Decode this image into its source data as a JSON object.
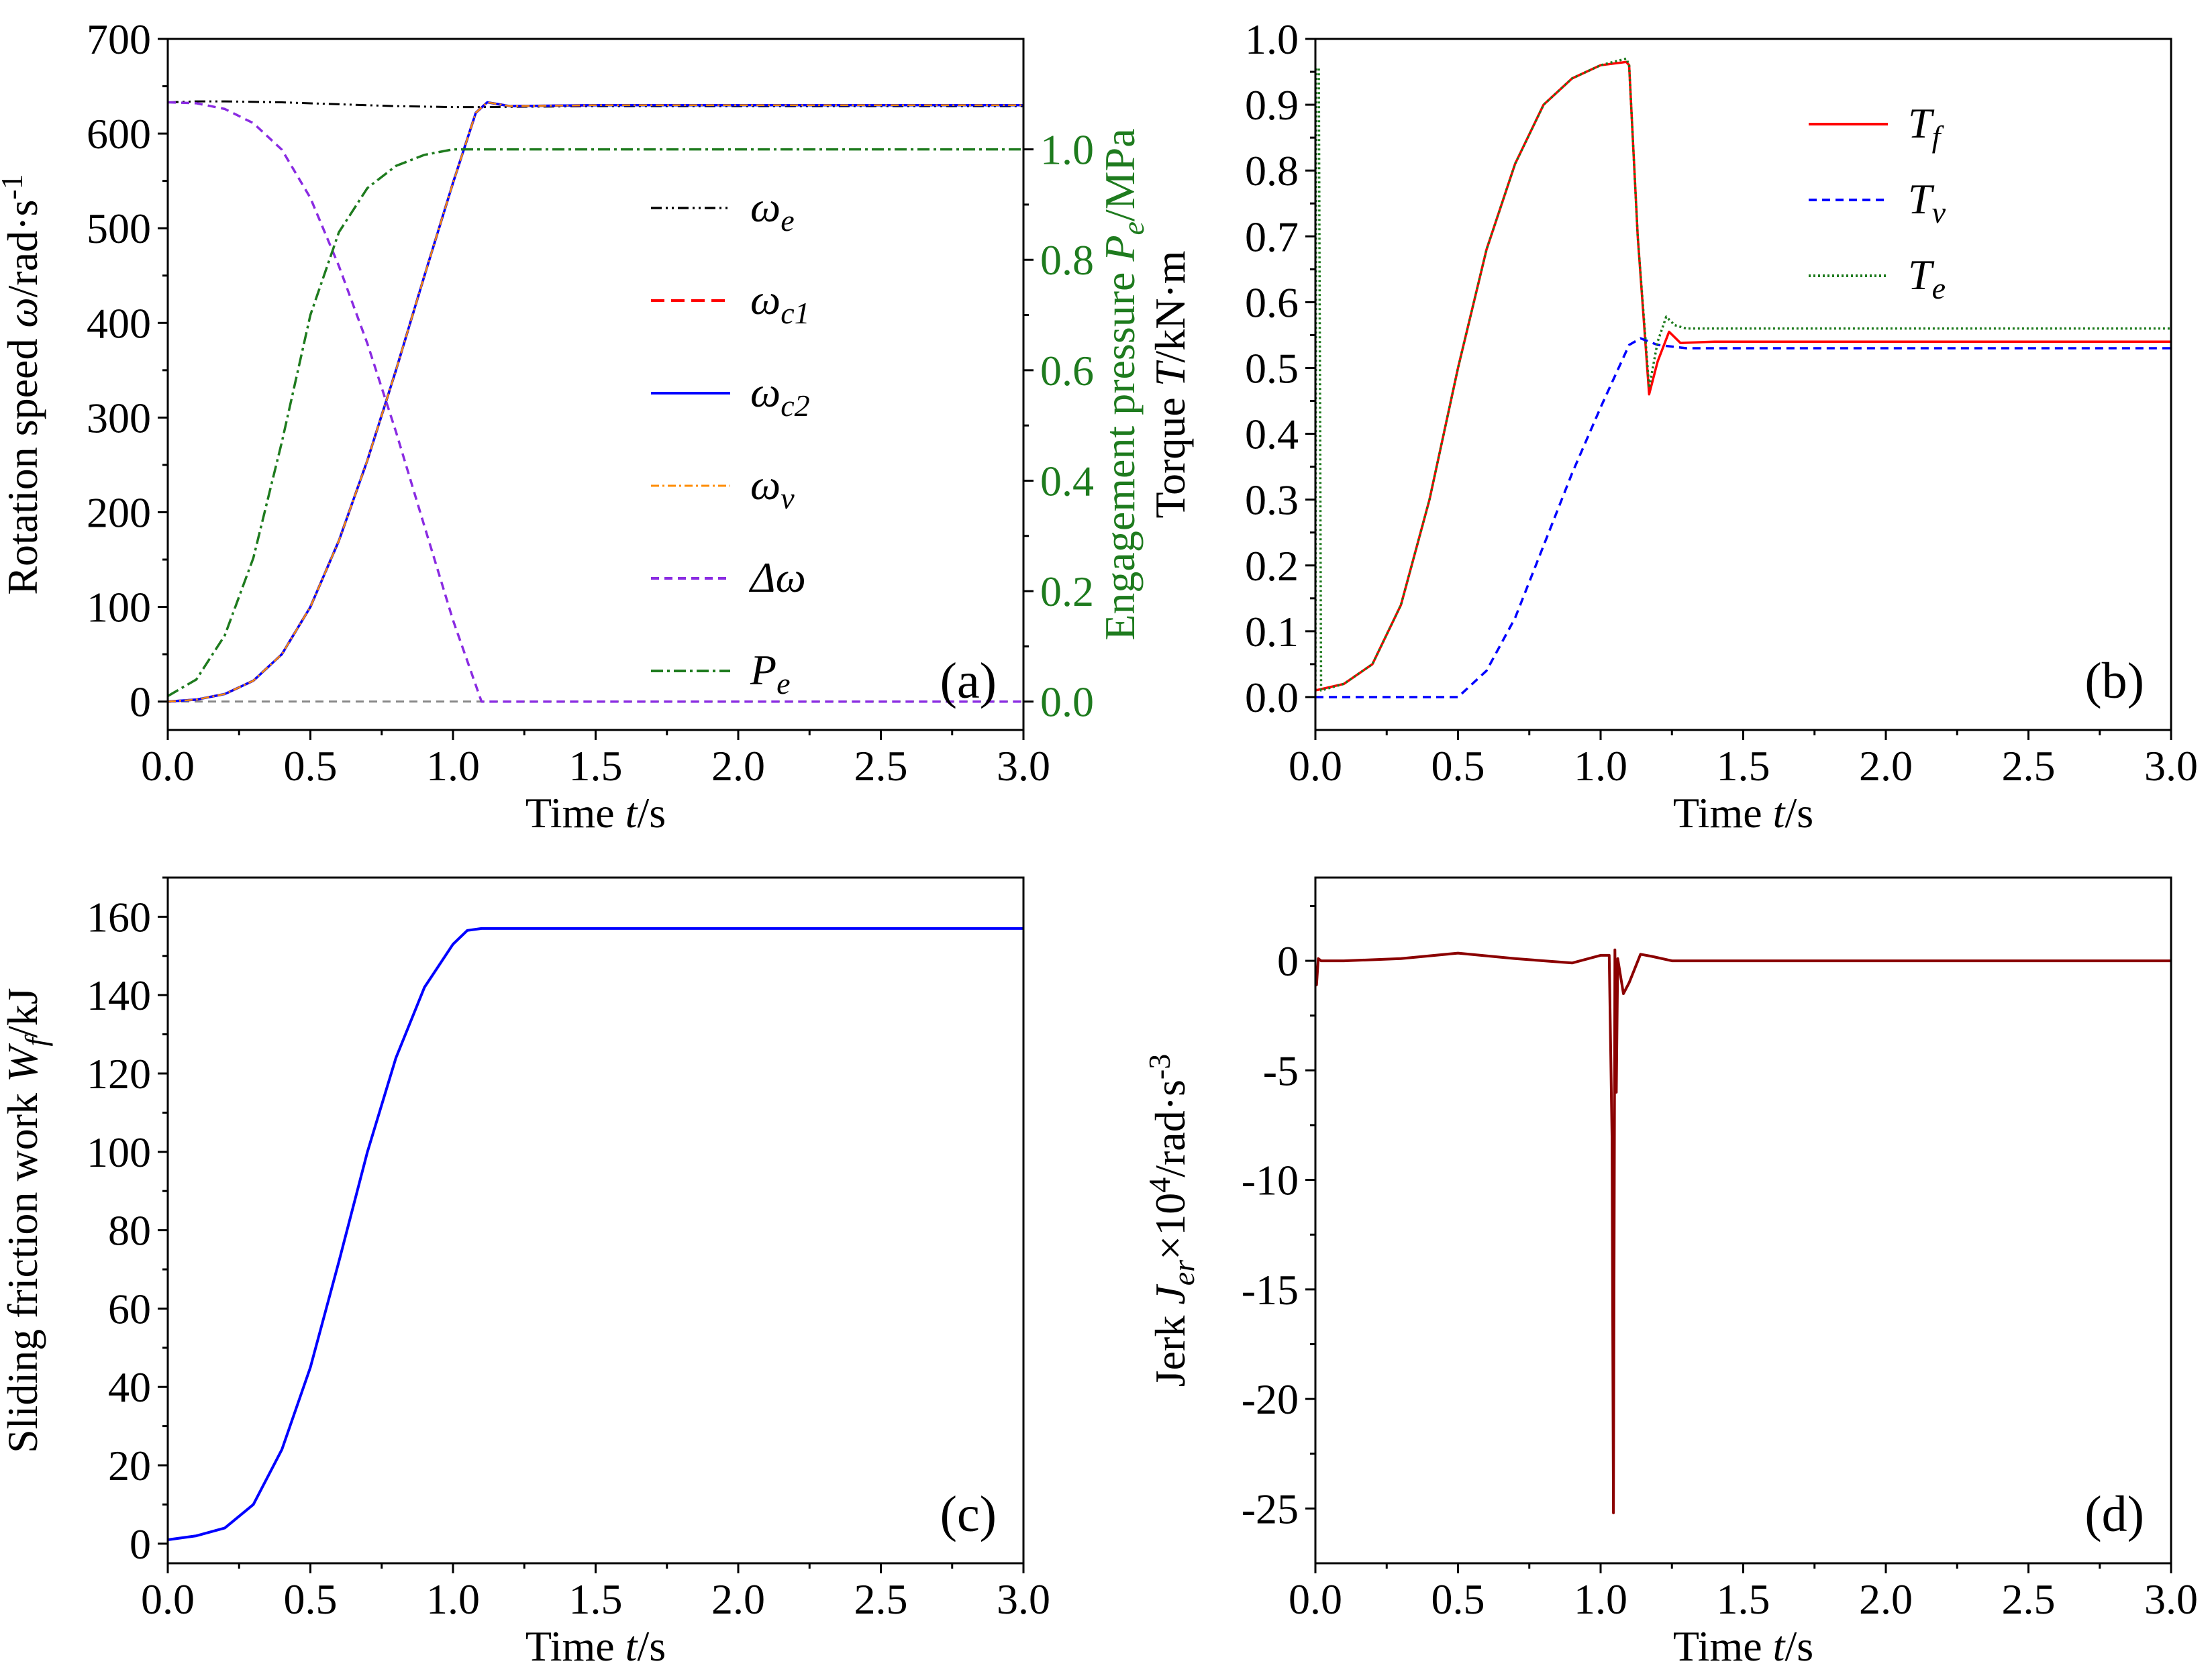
{
  "chart_data": [
    {
      "id": "a",
      "type": "line",
      "panel_label": "(a)",
      "xlabel": {
        "pre": "Time ",
        "var": "t",
        "post": "/s"
      },
      "ylabel": {
        "pre": "Rotation speed ",
        "var": "ω",
        "post": "/rad·s",
        "sup": "-1"
      },
      "y2label": {
        "pre": "Engagement pressure ",
        "var": "P",
        "sub": "e",
        "post": "/MPa"
      },
      "xlim": [
        0,
        3.0
      ],
      "ylim": [
        -30,
        700
      ],
      "y2lim": [
        -0.0514,
        1.2
      ],
      "xticks": [
        "0.0",
        "0.5",
        "1.0",
        "1.5",
        "2.0",
        "2.5",
        "3.0"
      ],
      "yticks": [
        "0",
        "100",
        "200",
        "300",
        "400",
        "500",
        "600",
        "700"
      ],
      "y2ticks": [
        "0.0",
        "0.2",
        "0.4",
        "0.6",
        "0.8",
        "1.0"
      ],
      "series": [
        {
          "name": "ω_e",
          "label_main": "ω",
          "label_sub": "e",
          "color": "#000000",
          "dash": "16,6,3,6,3,6",
          "width": 3,
          "axis": "y",
          "x": [
            0,
            0.1,
            0.2,
            0.4,
            0.6,
            0.8,
            1.0,
            1.1,
            1.5,
            2.0,
            3.0
          ],
          "y": [
            633,
            634,
            634,
            633,
            631,
            629,
            628,
            628,
            629,
            629,
            629
          ]
        },
        {
          "name": "ω_c1",
          "label_main": "ω",
          "label_sub": "c1",
          "color": "#ff0000",
          "dash": "20,10",
          "width": 3.5,
          "axis": "y",
          "x": [
            0,
            0.1,
            0.2,
            0.3,
            0.4,
            0.5,
            0.6,
            0.7,
            0.8,
            0.9,
            1.0,
            1.08,
            1.12,
            1.2,
            1.5,
            3.0
          ],
          "y": [
            0,
            2,
            8,
            22,
            50,
            100,
            170,
            255,
            350,
            450,
            548,
            622,
            633,
            629,
            630,
            630
          ]
        },
        {
          "name": "ω_c2",
          "label_main": "ω",
          "label_sub": "c2",
          "color": "#0000ff",
          "dash": "",
          "width": 3.5,
          "axis": "y",
          "x": [
            0,
            0.1,
            0.2,
            0.3,
            0.4,
            0.5,
            0.6,
            0.7,
            0.8,
            0.9,
            1.0,
            1.08,
            1.12,
            1.2,
            1.5,
            3.0
          ],
          "y": [
            0,
            2,
            8,
            22,
            50,
            100,
            170,
            255,
            350,
            450,
            548,
            622,
            633,
            629,
            630,
            630
          ]
        },
        {
          "name": "ω_v",
          "label_main": "ω",
          "label_sub": "v",
          "color": "#ff8c00",
          "dash": "12,5,3,5",
          "width": 2.5,
          "axis": "y",
          "x": [
            0,
            0.1,
            0.2,
            0.3,
            0.4,
            0.5,
            0.6,
            0.7,
            0.8,
            0.9,
            1.0,
            1.08,
            1.12,
            1.2,
            1.5,
            3.0
          ],
          "y": [
            0,
            2,
            8,
            22,
            50,
            100,
            170,
            255,
            350,
            450,
            548,
            622,
            633,
            629,
            630,
            630
          ]
        },
        {
          "name": "Δω",
          "label_main": "Δω",
          "label_sub": "",
          "color": "#8a2be2",
          "dash": "12,8",
          "width": 3.5,
          "axis": "y",
          "x": [
            0,
            0.1,
            0.2,
            0.3,
            0.4,
            0.5,
            0.6,
            0.7,
            0.8,
            0.9,
            1.0,
            1.1,
            3.0
          ],
          "y": [
            633,
            632,
            626,
            611,
            583,
            532,
            460,
            378,
            285,
            185,
            86,
            0,
            0
          ]
        },
        {
          "name": "P_e",
          "label_main": "P",
          "label_sub": "e",
          "color": "#1e7b1e",
          "dash": "18,6,4,6",
          "width": 3.5,
          "axis": "y2",
          "x": [
            0,
            0.1,
            0.2,
            0.3,
            0.4,
            0.5,
            0.6,
            0.7,
            0.8,
            0.9,
            1.0,
            1.1,
            1.2,
            3.0
          ],
          "y": [
            0.01,
            0.04,
            0.12,
            0.26,
            0.47,
            0.7,
            0.85,
            0.93,
            0.97,
            0.99,
            1.0,
            1.0,
            1.0,
            1.0
          ]
        }
      ],
      "reference_lines": [
        {
          "y": 0,
          "color": "#888888",
          "dash": "12,8"
        }
      ]
    },
    {
      "id": "b",
      "type": "line",
      "panel_label": "(b)",
      "xlabel": {
        "pre": "Time ",
        "var": "t",
        "post": "/s"
      },
      "ylabel": {
        "pre": "Torque ",
        "var": "T",
        "post": "/kN·m"
      },
      "xlim": [
        0,
        3.0
      ],
      "ylim": [
        -0.05,
        1.0
      ],
      "xticks": [
        "0.0",
        "0.5",
        "1.0",
        "1.5",
        "2.0",
        "2.5",
        "3.0"
      ],
      "yticks": [
        "0.0",
        "0.1",
        "0.2",
        "0.3",
        "0.4",
        "0.5",
        "0.6",
        "0.7",
        "0.8",
        "0.9",
        "1.0"
      ],
      "series": [
        {
          "name": "T_f",
          "label_main": "T",
          "label_sub": "f",
          "color": "#ff0000",
          "dash": "",
          "width": 3.5,
          "x": [
            0,
            0.1,
            0.2,
            0.3,
            0.4,
            0.5,
            0.6,
            0.7,
            0.8,
            0.9,
            1.0,
            1.09,
            1.1,
            1.13,
            1.17,
            1.2,
            1.24,
            1.28,
            1.4,
            3.0
          ],
          "y": [
            0.01,
            0.02,
            0.05,
            0.14,
            0.3,
            0.5,
            0.68,
            0.81,
            0.9,
            0.94,
            0.96,
            0.965,
            0.96,
            0.7,
            0.46,
            0.51,
            0.555,
            0.538,
            0.54,
            0.54
          ]
        },
        {
          "name": "T_v",
          "label_main": "T",
          "label_sub": "v",
          "color": "#0000ff",
          "dash": "12,8",
          "width": 3.5,
          "x": [
            0,
            0.5,
            0.6,
            0.7,
            0.8,
            0.9,
            1.0,
            1.1,
            1.14,
            1.2,
            1.3,
            3.0
          ],
          "y": [
            0,
            0,
            0.04,
            0.12,
            0.23,
            0.34,
            0.44,
            0.535,
            0.545,
            0.535,
            0.53,
            0.53
          ]
        },
        {
          "name": "T_e",
          "label_main": "T",
          "label_sub": "e",
          "color": "#1e7b1e",
          "dash": "3,4",
          "width": 3.5,
          "x": [
            0,
            0.003,
            0.012,
            0.02,
            0.1,
            0.2,
            0.3,
            0.4,
            0.5,
            0.6,
            0.7,
            0.8,
            0.9,
            1.0,
            1.09,
            1.1,
            1.13,
            1.17,
            1.2,
            1.23,
            1.26,
            1.3,
            1.4,
            3.0
          ],
          "y": [
            0.01,
            0.955,
            0.955,
            0.01,
            0.02,
            0.05,
            0.14,
            0.3,
            0.5,
            0.68,
            0.81,
            0.9,
            0.94,
            0.96,
            0.97,
            0.96,
            0.7,
            0.47,
            0.54,
            0.578,
            0.565,
            0.56,
            0.56,
            0.56
          ]
        }
      ]
    },
    {
      "id": "c",
      "type": "line",
      "panel_label": "(c)",
      "xlabel": {
        "pre": "Time ",
        "var": "t",
        "post": "/s"
      },
      "ylabel": {
        "pre": "Sliding friction work ",
        "var": "W",
        "sub": "f",
        "post": "/kJ"
      },
      "xlim": [
        0,
        3.0
      ],
      "ylim": [
        -5,
        170
      ],
      "xticks": [
        "0.0",
        "0.5",
        "1.0",
        "1.5",
        "2.0",
        "2.5",
        "3.0"
      ],
      "yticks": [
        "0",
        "20",
        "40",
        "60",
        "80",
        "100",
        "120",
        "140",
        "160"
      ],
      "series": [
        {
          "name": "W_f",
          "color": "#0000ff",
          "dash": "",
          "width": 4,
          "x": [
            0,
            0.1,
            0.2,
            0.3,
            0.4,
            0.5,
            0.6,
            0.7,
            0.8,
            0.9,
            1.0,
            1.05,
            1.1,
            3.0
          ],
          "y": [
            1,
            2,
            4,
            10,
            24,
            45,
            72,
            100,
            124,
            142,
            153,
            156.5,
            157,
            157
          ]
        }
      ]
    },
    {
      "id": "d",
      "type": "line",
      "panel_label": "(d)",
      "xlabel": {
        "pre": "Time ",
        "var": "t",
        "post": "/s"
      },
      "ylabel": {
        "pre": "Jerk ",
        "var": "J",
        "sub": "er",
        "post": "×10",
        "sup": "4",
        "post2": "/rad·s",
        "sup2": "-3"
      },
      "xlim": [
        0,
        3.0
      ],
      "ylim": [
        -27.5,
        3.8
      ],
      "xticks": [
        "0.0",
        "0.5",
        "1.0",
        "1.5",
        "2.0",
        "2.5",
        "3.0"
      ],
      "yticks": [
        "0",
        "-5",
        "-10",
        "-15",
        "-20",
        "-25"
      ],
      "series": [
        {
          "name": "J_er",
          "color": "#8b0000",
          "dash": "",
          "width": 4,
          "x": [
            0,
            0.004,
            0.01,
            0.02,
            0.1,
            0.3,
            0.5,
            0.7,
            0.9,
            1.0,
            1.03,
            1.04,
            1.045,
            1.05,
            1.055,
            1.06,
            1.08,
            1.1,
            1.14,
            1.18,
            1.25,
            3.0
          ],
          "y": [
            -1.0,
            -1.1,
            0.1,
            0.0,
            0.0,
            0.1,
            0.35,
            0.1,
            -0.1,
            0.25,
            0.25,
            -8,
            -25.2,
            0.5,
            -6,
            0.1,
            -1.5,
            -1.0,
            0.3,
            0.2,
            0.0,
            0.0
          ]
        }
      ]
    }
  ]
}
